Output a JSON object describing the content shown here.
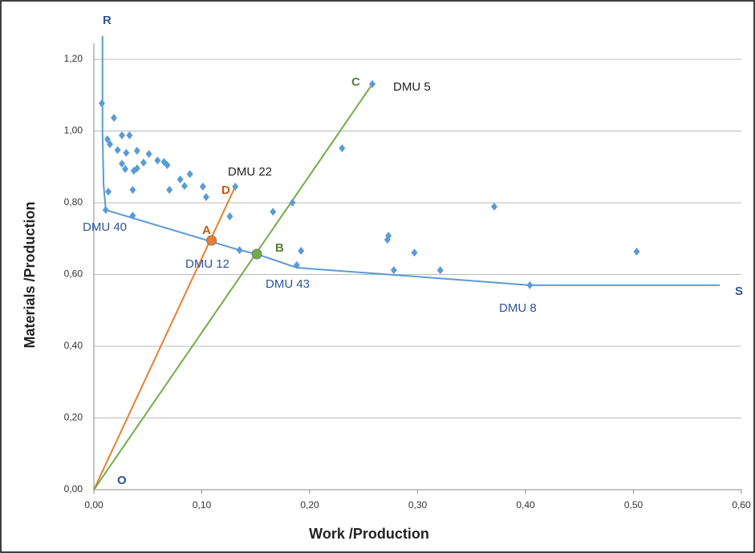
{
  "chart_data": {
    "type": "scatter",
    "x_label": "Work /Production",
    "y_label": "Materials /Production",
    "xlim": [
      0,
      0.6
    ],
    "ylim": [
      0,
      1.2
    ],
    "xticks": [
      {
        "value": 0,
        "label": "0,00"
      },
      {
        "value": 0.1,
        "label": "0,10"
      },
      {
        "value": 0.2,
        "label": "0,20"
      },
      {
        "value": 0.3,
        "label": "0,30"
      },
      {
        "value": 0.4,
        "label": "0,40"
      },
      {
        "value": 0.5,
        "label": "0,50"
      },
      {
        "value": 0.6,
        "label": "0,60"
      }
    ],
    "yticks": [
      {
        "value": 0,
        "label": "0,00"
      },
      {
        "value": 0.2,
        "label": "0,20"
      },
      {
        "value": 0.4,
        "label": "0,40"
      },
      {
        "value": 0.6,
        "label": "0,60"
      },
      {
        "value": 0.8,
        "label": "0,80"
      },
      {
        "value": 1,
        "label": "1,00"
      },
      {
        "value": 1.2,
        "label": "1,20"
      }
    ],
    "grid": true,
    "color": "#5b9bd5",
    "points": {
      "x": [
        0.0074,
        0.0126,
        0.0149,
        0.0134,
        0.011,
        0.0186,
        0.022,
        0.026,
        0.033,
        0.026,
        0.03,
        0.029,
        0.037,
        0.04,
        0.04,
        0.046,
        0.051,
        0.059,
        0.065,
        0.068,
        0.036,
        0.07,
        0.08,
        0.084,
        0.089,
        0.101,
        0.104,
        0.131,
        0.036,
        0.126,
        0.135,
        0.166,
        0.184,
        0.188,
        0.192,
        0.23,
        0.258,
        0.272,
        0.273,
        0.278,
        0.297,
        0.321,
        0.371,
        0.404,
        0.503
      ],
      "y": [
        1.077,
        0.977,
        0.963,
        0.831,
        0.78,
        1.037,
        0.947,
        0.988,
        0.988,
        0.909,
        0.939,
        0.894,
        0.889,
        0.896,
        0.945,
        0.912,
        0.936,
        0.918,
        0.914,
        0.905,
        0.836,
        0.836,
        0.865,
        0.847,
        0.88,
        0.845,
        0.816,
        0.845,
        0.764,
        0.762,
        0.668,
        0.775,
        0.8,
        0.626,
        0.666,
        0.952,
        1.131,
        0.697,
        0.708,
        0.612,
        0.661,
        0.612,
        0.789,
        0.57,
        0.664
      ]
    },
    "frontier": {
      "x": [
        0.008,
        0.008,
        0.009,
        0.011,
        0.135,
        0.151,
        0.188,
        0.278,
        0.404,
        0.58
      ],
      "y": [
        1.265,
        1.0,
        0.85,
        0.78,
        0.668,
        0.657,
        0.619,
        0.599,
        0.57,
        0.57
      ]
    },
    "rays": [
      {
        "color": "#ed7d31",
        "x": [
          0,
          0.131
        ],
        "y": [
          0,
          0.845
        ]
      },
      {
        "color": "#70ad47",
        "x": [
          0,
          0.258
        ],
        "y": [
          0,
          1.131
        ]
      }
    ],
    "markers": [
      {
        "color": "#ed7d31",
        "x": 0.109,
        "y": 0.695
      },
      {
        "color": "#70ad47",
        "x": 0.151,
        "y": 0.657
      }
    ],
    "annotations": [
      "R",
      "S",
      "O",
      "A",
      "B",
      "C",
      "D",
      "DMU 5",
      "DMU 22",
      "DMU 40",
      "DMU 12",
      "DMU 43",
      "DMU 8"
    ]
  }
}
